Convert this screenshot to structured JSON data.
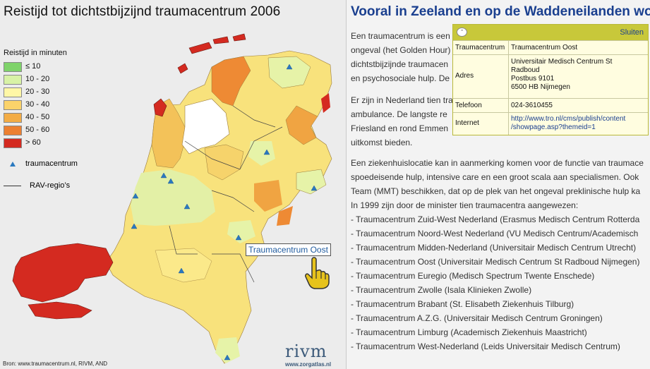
{
  "map": {
    "title": "Reistijd tot dichtstbijzijnd traumacentrum 2006",
    "legend_heading": "Reistijd in minuten",
    "legend": [
      {
        "label": "≤ 10",
        "color": "#7fd36a"
      },
      {
        "label": "10 - 20",
        "color": "#d8f2a6"
      },
      {
        "label": "20 - 30",
        "color": "#fff7a6"
      },
      {
        "label": "30 - 40",
        "color": "#fbd36a"
      },
      {
        "label": "40 - 50",
        "color": "#f3ac45"
      },
      {
        "label": "50 - 60",
        "color": "#ec7f30"
      },
      {
        "label": "> 60",
        "color": "#d42a20"
      }
    ],
    "legend_centre_label": "traumacentrum",
    "legend_region_label": "RAV-regio’s",
    "tooltip": "Traumacentrum Oost",
    "source": "Bron: www.traumacentrum.nl, RIVM, AND",
    "logo": "rivm",
    "logo_url": "www.zorgatlas.nl"
  },
  "article": {
    "title": "Vooral in Zeeland en op de Waddeneilanden wo",
    "paragraph1": [
      "Een traumacentrum is een",
      "ongeval (het Golden Hour)",
      "dichtstbijzijnde traumacen",
      "en psychosociale hulp. De"
    ],
    "paragraph2": [
      "Er zijn in Nederland tien tra",
      "ambulance. De langste re",
      "Friesland en rond Emmen",
      "uitkomst bieden."
    ],
    "paragraph3": [
      "Een ziekenhuislocatie kan in aanmerking komen voor de functie van traumace",
      "spoedeisende hulp, intensive care en een groot scala aan specialismen. Ook",
      "Team (MMT) beschikken, dat op de plek van het ongeval preklinische hulp ka",
      "In 1999 zijn door de minister tien traumacentra aangewezen:"
    ],
    "list": [
      "- Traumacentrum Zuid-West Nederland (Erasmus Medisch Centrum Rotterda",
      "- Traumacentrum Noord-West Nederland (VU Medisch Centrum/Academisch",
      "- Traumacentrum Midden-Nederland (Universitair Medisch Centrum Utrecht)",
      "- Traumacentrum Oost (Universitair Medisch Centrum St Radboud Nijmegen)",
      "- Traumacentrum Euregio (Medisch Spectrum Twente Enschede)",
      "- Traumacentrum Zwolle (Isala Klinieken Zwolle)",
      "- Traumacentrum Brabant (St. Elisabeth Ziekenhuis Tilburg)",
      "- Traumacentrum A.Z.G. (Universitair Medisch Centrum Groningen)",
      "- Traumacentrum Limburg (Academisch Ziekenhuis Maastricht)",
      "- Traumacentrum West-Nederland (Leids Universitair Medisch Centrum)"
    ]
  },
  "popup": {
    "close_label": "Sluiten",
    "rows": [
      {
        "key": "Traumacentrum",
        "lines": [
          "Traumacentrum Oost"
        ]
      },
      {
        "key": "Adres",
        "lines": [
          "Universitair Medisch Centrum St",
          "Radboud",
          "Postbus 9101",
          "6500 HB Nijmegen"
        ]
      },
      {
        "key": "Telefoon",
        "lines": [
          "024-3610455"
        ]
      },
      {
        "key": "Internet",
        "lines": [
          "http://www.tro.nl/cms/publish/content",
          "/showpage.asp?themeid=1"
        ]
      }
    ]
  }
}
